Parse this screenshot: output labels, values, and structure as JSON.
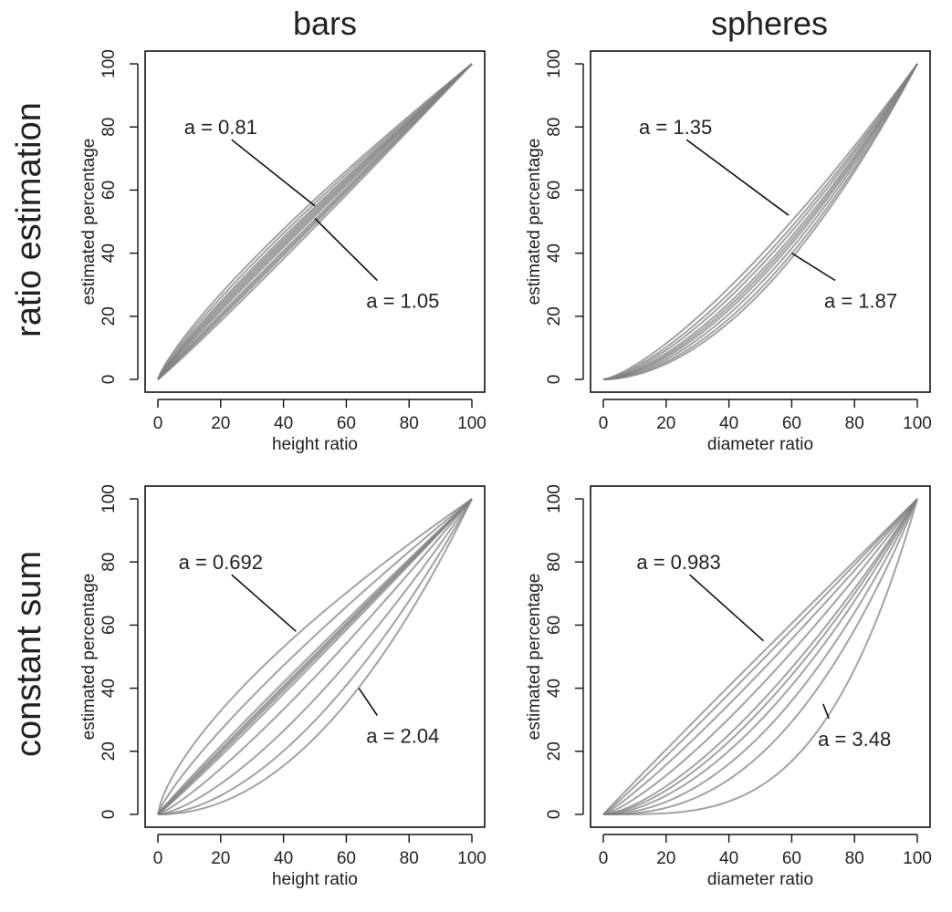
{
  "column_titles": [
    "bars",
    "spheres"
  ],
  "row_titles": [
    "ratio estimation",
    "constant sum"
  ],
  "chart_data": [
    {
      "type": "line",
      "row": "ratio estimation",
      "column": "bars",
      "xlabel": "height ratio",
      "ylabel": "estimated percentage",
      "xlim": [
        0,
        100
      ],
      "ylim": [
        0,
        100
      ],
      "xticks": [
        0,
        20,
        40,
        60,
        80,
        100
      ],
      "yticks": [
        0,
        20,
        40,
        60,
        80,
        100
      ],
      "curve_exponents": [
        0.81,
        0.84,
        0.87,
        0.89,
        0.91,
        0.93,
        0.95,
        0.98,
        1.0,
        1.02,
        1.05
      ],
      "annotations": [
        {
          "text": "a = 0.81",
          "x": 20,
          "y": 80,
          "line_to": [
            50,
            55
          ]
        },
        {
          "text": "a = 1.05",
          "x": 78,
          "y": 25,
          "line_to": [
            50,
            51
          ]
        }
      ],
      "grid": false
    },
    {
      "type": "line",
      "row": "ratio estimation",
      "column": "spheres",
      "xlabel": "diameter ratio",
      "ylabel": "estimated percentage",
      "xlim": [
        0,
        100
      ],
      "ylim": [
        0,
        100
      ],
      "xticks": [
        0,
        20,
        40,
        60,
        80,
        100
      ],
      "yticks": [
        0,
        20,
        40,
        60,
        80,
        100
      ],
      "curve_exponents": [
        1.35,
        1.42,
        1.48,
        1.55,
        1.6,
        1.65,
        1.72,
        1.8,
        1.87
      ],
      "annotations": [
        {
          "text": "a = 1.35",
          "x": 23,
          "y": 80,
          "line_to": [
            59,
            52
          ]
        },
        {
          "text": "a = 1.87",
          "x": 82,
          "y": 25,
          "line_to": [
            60,
            40
          ]
        }
      ],
      "grid": false
    },
    {
      "type": "line",
      "row": "constant sum",
      "column": "bars",
      "xlabel": "height ratio",
      "ylabel": "estimated percentage",
      "xlim": [
        0,
        100
      ],
      "ylim": [
        0,
        100
      ],
      "xticks": [
        0,
        20,
        40,
        60,
        80,
        100
      ],
      "yticks": [
        0,
        20,
        40,
        60,
        80,
        100
      ],
      "curve_exponents": [
        0.692,
        0.82,
        0.95,
        0.98,
        1.0,
        1.02,
        1.05,
        1.2,
        1.45,
        1.75,
        2.04
      ],
      "annotations": [
        {
          "text": "a = 0.692",
          "x": 20,
          "y": 80,
          "line_to": [
            44,
            58
          ]
        },
        {
          "text": "a = 2.04",
          "x": 78,
          "y": 25,
          "line_to": [
            64,
            40
          ]
        }
      ],
      "grid": false
    },
    {
      "type": "line",
      "row": "constant sum",
      "column": "spheres",
      "xlabel": "diameter ratio",
      "ylabel": "estimated percentage",
      "xlim": [
        0,
        100
      ],
      "ylim": [
        0,
        100
      ],
      "xticks": [
        0,
        20,
        40,
        60,
        80,
        100
      ],
      "yticks": [
        0,
        20,
        40,
        60,
        80,
        100
      ],
      "curve_exponents": [
        0.983,
        1.05,
        1.15,
        1.3,
        1.5,
        1.6,
        1.75,
        2.0,
        2.4,
        3.48
      ],
      "annotations": [
        {
          "text": "a = 0.983",
          "x": 24,
          "y": 80,
          "line_to": [
            51,
            55
          ]
        },
        {
          "text": "a = 3.48",
          "x": 80,
          "y": 24,
          "line_to": [
            70,
            35
          ]
        }
      ],
      "grid": false
    }
  ]
}
